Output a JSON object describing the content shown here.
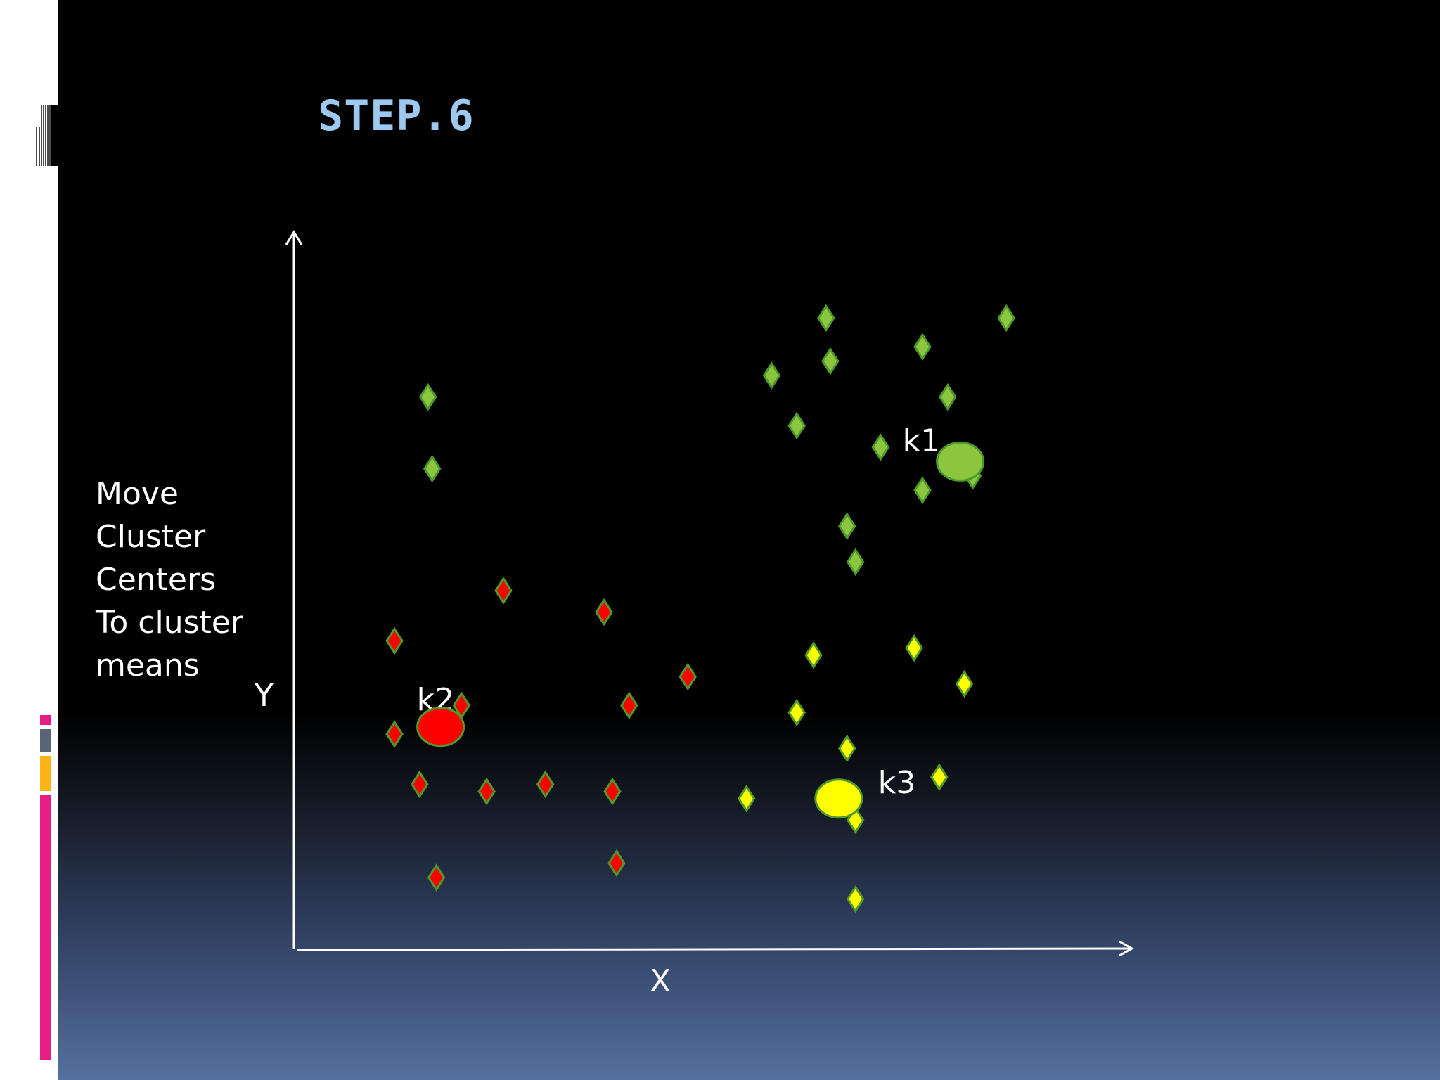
{
  "slide": {
    "title": "STEP.6"
  },
  "side_text": [
    "Move",
    "Cluster",
    "Centers",
    "To cluster",
    "means"
  ],
  "colors": {
    "green": "#8cc63f",
    "red": "#ff0000",
    "yellow": "#ffff00",
    "point_stroke": "#4d9a2a",
    "title": "#9dc9f0",
    "accent_pink": "#e91e84",
    "accent_orange": "#fbb415",
    "accent_slate": "#5a6478"
  },
  "chart_data": {
    "type": "scatter",
    "xlabel": "X",
    "ylabel": "Y",
    "xlim": [
      0,
      100
    ],
    "ylim": [
      0,
      100
    ],
    "marker": "diamond",
    "series": [
      {
        "cluster": "green",
        "color": "#8cc63f",
        "points": [
          [
            16,
            77
          ],
          [
            16.5,
            67
          ],
          [
            57,
            80
          ],
          [
            60,
            73
          ],
          [
            63.5,
            88
          ],
          [
            64,
            82
          ],
          [
            66,
            59
          ],
          [
            67,
            54
          ],
          [
            70,
            70
          ],
          [
            75,
            84
          ],
          [
            75,
            64
          ],
          [
            78,
            77
          ],
          [
            81,
            66
          ],
          [
            85,
            88
          ]
        ]
      },
      {
        "cluster": "red",
        "color": "#ff0000",
        "points": [
          [
            12,
            43
          ],
          [
            12,
            30
          ],
          [
            15,
            23
          ],
          [
            17,
            10
          ],
          [
            20,
            34
          ],
          [
            23,
            22
          ],
          [
            25,
            50
          ],
          [
            30,
            23
          ],
          [
            38.5,
            12
          ],
          [
            37,
            47
          ],
          [
            38,
            22
          ],
          [
            40,
            34
          ],
          [
            47,
            38
          ]
        ]
      },
      {
        "cluster": "yellow",
        "color": "#ffff00",
        "points": [
          [
            54,
            21
          ],
          [
            60,
            33
          ],
          [
            62,
            41
          ],
          [
            66,
            28
          ],
          [
            67,
            18
          ],
          [
            67,
            7
          ],
          [
            74,
            42
          ],
          [
            77,
            24
          ],
          [
            80,
            37
          ]
        ]
      }
    ],
    "centers": [
      {
        "label": "k1",
        "x": 79.5,
        "y": 68,
        "color": "#8cc63f"
      },
      {
        "label": "k2",
        "x": 17.5,
        "y": 31,
        "color": "#ff0000"
      },
      {
        "label": "k3",
        "x": 65,
        "y": 21,
        "color": "#ffff00"
      }
    ]
  }
}
